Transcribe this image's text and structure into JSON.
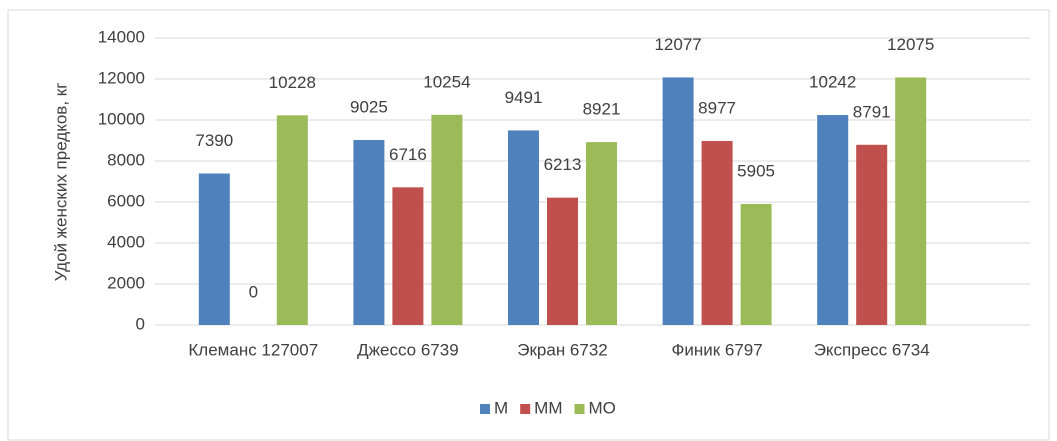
{
  "chart_data": {
    "type": "bar",
    "y_label": "Удой женских предков, кг",
    "categories": [
      "Клеманс 127007",
      "Джессо 6739",
      "Экран 6732",
      "Финик 6797",
      "Экспресс 6734"
    ],
    "series": [
      {
        "name": "М",
        "color": "#4f81bd",
        "values": [
          7390,
          9025,
          9491,
          12077,
          10242
        ]
      },
      {
        "name": "ММ",
        "color": "#c0504d",
        "values": [
          0,
          6716,
          6213,
          8977,
          8791
        ]
      },
      {
        "name": "МО",
        "color": "#9bbb59",
        "values": [
          10228,
          10254,
          8921,
          5905,
          12075
        ]
      }
    ],
    "ylim": [
      0,
      14000
    ],
    "yticks": [
      0,
      2000,
      4000,
      6000,
      8000,
      10000,
      12000,
      14000
    ],
    "grid": true,
    "legend": "bottom"
  }
}
